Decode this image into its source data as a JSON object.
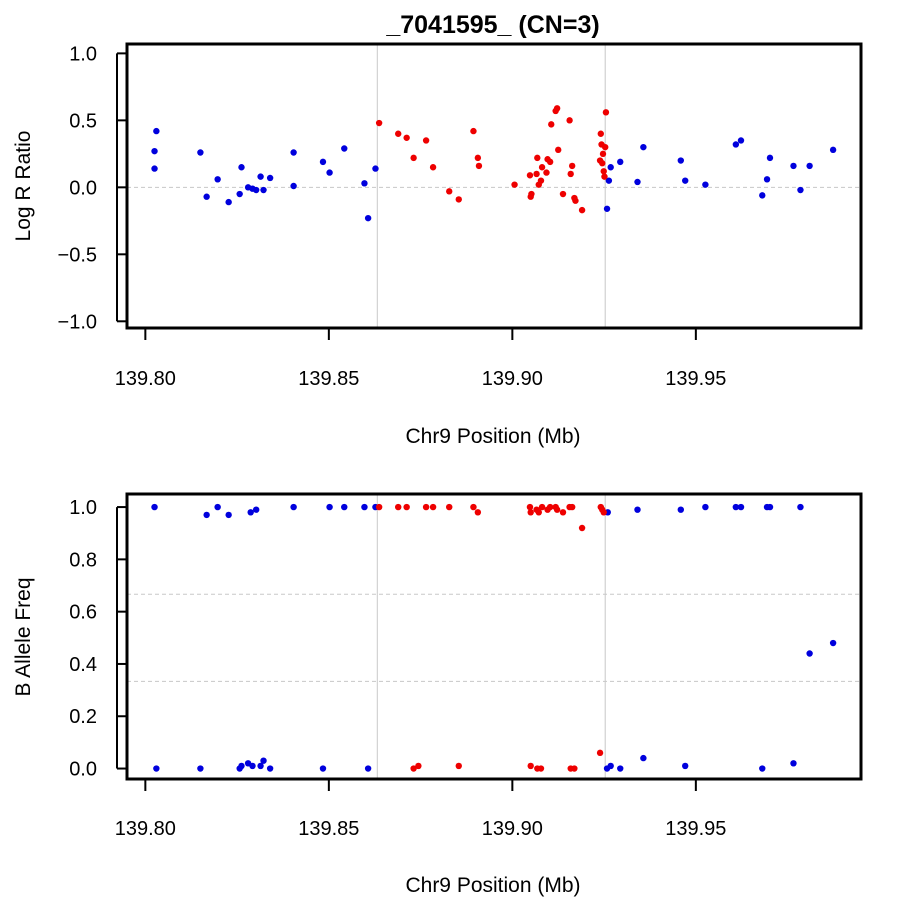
{
  "title": "_7041595_ (CN=3)",
  "colors": {
    "outside_region": "#0000dd",
    "inside_region": "#ee0000",
    "reference_line": "#c8c8c8",
    "frame": "#000000"
  },
  "region_bounds_mb": [
    139.8632,
    139.9253
  ],
  "chart_data": [
    {
      "type": "scatter",
      "xlabel": "Chr9 Position (Mb)",
      "ylabel": "Log R Ratio",
      "xlim": [
        139.795,
        139.995
      ],
      "ylim": [
        -1.05,
        1.07
      ],
      "xticks": [
        139.8,
        139.85,
        139.9,
        139.95
      ],
      "xtick_labels": [
        "139.80",
        "139.85",
        "139.90",
        "139.95"
      ],
      "yticks": [
        -1.0,
        -0.5,
        0.0,
        0.5,
        1.0
      ],
      "ytick_labels": [
        "−1.0",
        "−0.5",
        "0.0",
        "0.5",
        "1.0"
      ],
      "hlines": [
        0.0
      ],
      "vlines": [
        139.8632,
        139.9253
      ],
      "grid": false,
      "series": [
        {
          "color": "#0000dd",
          "x": [
            139.8025,
            139.8025,
            139.803,
            139.815,
            139.8167,
            139.8197,
            139.8227,
            139.8257,
            139.8262,
            139.828,
            139.8292,
            139.8302,
            139.8314,
            139.8322,
            139.834,
            139.8404,
            139.8404,
            139.8484,
            139.8502,
            139.8542,
            139.8597,
            139.8607,
            139.8627,
            139.9258,
            139.9263,
            139.9268,
            139.9294,
            139.9341,
            139.9357,
            139.9459,
            139.9471,
            139.9526,
            139.9609,
            139.9623,
            139.9681,
            139.9694,
            139.9702,
            139.9766,
            139.9785,
            139.981,
            139.9874
          ],
          "y": [
            0.27,
            0.14,
            0.42,
            0.26,
            -0.07,
            0.06,
            -0.11,
            -0.05,
            0.15,
            0.0,
            -0.01,
            -0.02,
            0.08,
            -0.02,
            0.07,
            0.26,
            0.01,
            0.19,
            0.11,
            0.29,
            0.03,
            -0.23,
            0.14,
            -0.16,
            0.05,
            0.15,
            0.19,
            0.04,
            0.3,
            0.2,
            0.05,
            0.02,
            0.32,
            0.35,
            -0.06,
            0.06,
            0.22,
            0.16,
            -0.02,
            0.16,
            0.28
          ]
        },
        {
          "color": "#ee0000",
          "x": [
            139.8637,
            139.8689,
            139.8712,
            139.8731,
            139.8765,
            139.8784,
            139.8828,
            139.8854,
            139.8894,
            139.8906,
            139.8909,
            139.9006,
            139.9048,
            139.905,
            139.9052,
            139.9066,
            139.9068,
            139.9072,
            139.9078,
            139.9081,
            139.9093,
            139.9096,
            139.9103,
            139.9106,
            139.9118,
            139.9122,
            139.9125,
            139.9138,
            139.9156,
            139.9159,
            139.9163,
            139.9169,
            139.9172,
            139.919,
            139.9239,
            139.9241,
            139.9243,
            139.9245,
            139.9247,
            139.9249,
            139.9251,
            139.9253,
            139.9255
          ],
          "y": [
            0.48,
            0.4,
            0.37,
            0.22,
            0.35,
            0.15,
            -0.03,
            -0.09,
            0.42,
            0.22,
            0.16,
            0.02,
            0.09,
            -0.07,
            -0.05,
            0.1,
            0.22,
            0.02,
            0.05,
            0.15,
            0.11,
            0.21,
            0.19,
            0.47,
            0.57,
            0.59,
            0.28,
            -0.05,
            0.5,
            0.1,
            0.16,
            -0.08,
            -0.1,
            -0.17,
            0.2,
            0.4,
            0.32,
            0.18,
            0.25,
            0.12,
            0.08,
            0.3,
            0.56
          ]
        }
      ]
    },
    {
      "type": "scatter",
      "xlabel": "Chr9 Position (Mb)",
      "ylabel": "B Allele Freq",
      "xlim": [
        139.795,
        139.995
      ],
      "ylim": [
        -0.04,
        1.05
      ],
      "xticks": [
        139.8,
        139.85,
        139.9,
        139.95
      ],
      "xtick_labels": [
        "139.80",
        "139.85",
        "139.90",
        "139.95"
      ],
      "yticks": [
        0.0,
        0.2,
        0.4,
        0.6,
        0.8,
        1.0
      ],
      "ytick_labels": [
        "0.0",
        "0.2",
        "0.4",
        "0.6",
        "0.8",
        "1.0"
      ],
      "hlines": [
        0.3333,
        0.6667
      ],
      "vlines": [
        139.8632,
        139.9253
      ],
      "grid": false,
      "series": [
        {
          "color": "#0000dd",
          "x": [
            139.8025,
            139.8167,
            139.8197,
            139.8227,
            139.8287,
            139.8302,
            139.8404,
            139.8502,
            139.8542,
            139.8597,
            139.8627,
            139.926,
            139.9341,
            139.9459,
            139.9526,
            139.9609,
            139.9623,
            139.9694,
            139.9702,
            139.9785,
            139.803,
            139.815,
            139.8257,
            139.8262,
            139.828,
            139.8292,
            139.8314,
            139.8322,
            139.834,
            139.8484,
            139.8607,
            139.9258,
            139.9268,
            139.9294,
            139.9357,
            139.9471,
            139.9681,
            139.9766,
            139.981,
            139.9874
          ],
          "y": [
            1.0,
            0.97,
            1.0,
            0.97,
            0.98,
            0.99,
            1.0,
            1.0,
            1.0,
            1.0,
            1.0,
            0.98,
            0.99,
            0.99,
            1.0,
            1.0,
            1.0,
            1.0,
            1.0,
            1.0,
            0.0,
            0.0,
            0.0,
            0.01,
            0.02,
            0.01,
            0.01,
            0.03,
            0.0,
            0.0,
            0.0,
            0.0,
            0.01,
            0.0,
            0.04,
            0.01,
            0.0,
            0.02,
            0.44,
            0.48
          ]
        },
        {
          "color": "#ee0000",
          "x": [
            139.8637,
            139.8689,
            139.8712,
            139.8765,
            139.8784,
            139.8828,
            139.8894,
            139.8906,
            139.9048,
            139.905,
            139.9066,
            139.9072,
            139.9081,
            139.9096,
            139.9103,
            139.9118,
            139.9122,
            139.9138,
            139.9156,
            139.9163,
            139.919,
            139.9241,
            139.9245,
            139.9249,
            139.8731,
            139.8744,
            139.8854,
            139.905,
            139.9068,
            139.9078,
            139.9159,
            139.9169,
            139.9239
          ],
          "y": [
            1.0,
            1.0,
            1.0,
            1.0,
            1.0,
            1.0,
            1.0,
            0.98,
            1.0,
            0.98,
            0.99,
            0.98,
            1.0,
            0.99,
            1.0,
            1.0,
            0.99,
            0.98,
            1.0,
            1.0,
            0.92,
            1.0,
            0.99,
            0.98,
            0.0,
            0.01,
            0.01,
            0.01,
            0.0,
            0.0,
            0.0,
            0.0,
            0.06
          ]
        }
      ]
    }
  ]
}
